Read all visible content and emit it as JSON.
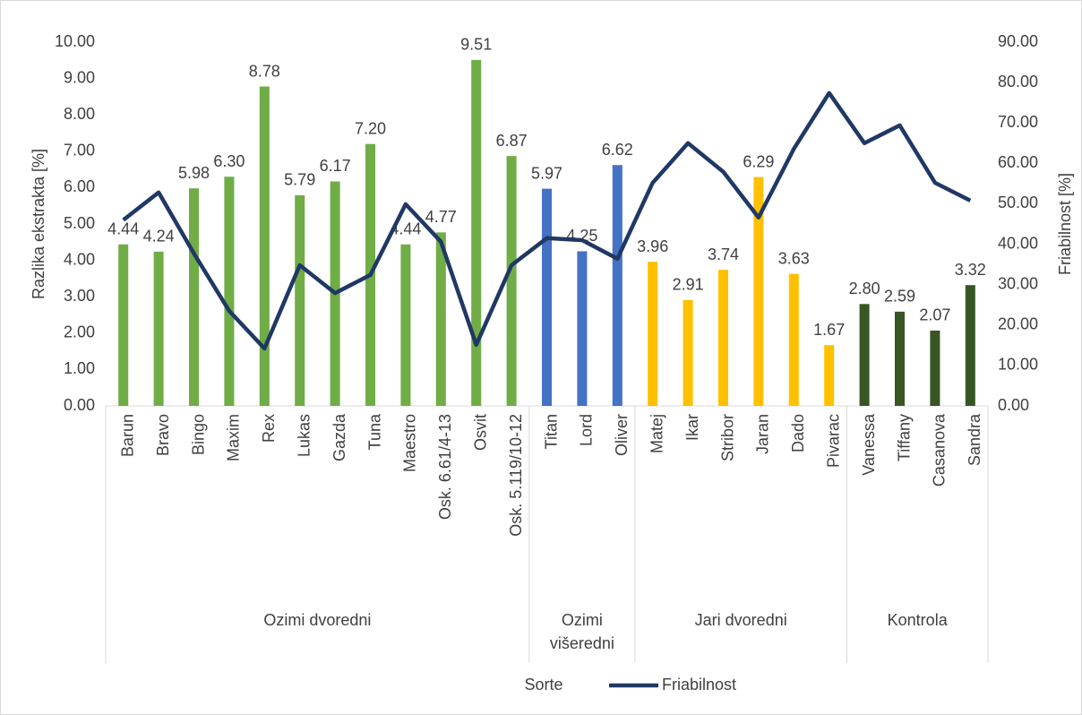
{
  "chart_data": {
    "type": "bar_line",
    "x_label": "Sorte",
    "y_label": "Razlika ekstrakta [%]",
    "y2_label": "Friabilnost [%]",
    "ylim": [
      0,
      10
    ],
    "yticks": [
      {
        "value": 0,
        "label": "0.00"
      },
      {
        "value": 1,
        "label": "1.00"
      },
      {
        "value": 2,
        "label": "2.00"
      },
      {
        "value": 3,
        "label": "3.00"
      },
      {
        "value": 4,
        "label": "4.00"
      },
      {
        "value": 5,
        "label": "5.00"
      },
      {
        "value": 6,
        "label": "6.00"
      },
      {
        "value": 7,
        "label": "7.00"
      },
      {
        "value": 8,
        "label": "8.00"
      },
      {
        "value": 9,
        "label": "9.00"
      },
      {
        "value": 10,
        "label": "10.00"
      }
    ],
    "y2lim": [
      0,
      90
    ],
    "y2ticks": [
      {
        "value": 0,
        "label": "0.00"
      },
      {
        "value": 10,
        "label": "10.00"
      },
      {
        "value": 20,
        "label": "20.00"
      },
      {
        "value": 30,
        "label": "30.00"
      },
      {
        "value": 40,
        "label": "40.00"
      },
      {
        "value": 50,
        "label": "50.00"
      },
      {
        "value": 60,
        "label": "60.00"
      },
      {
        "value": 70,
        "label": "70.00"
      },
      {
        "value": 80,
        "label": "80.00"
      },
      {
        "value": 90,
        "label": "90.00"
      }
    ],
    "groups": [
      {
        "name": "Ozimi dvoredni",
        "color": "#70ad47",
        "categories": [
          "Barun",
          "Bravo",
          "Bingo",
          "Maxim",
          "Rex",
          "Lukas",
          "Gazda",
          "Tuna",
          "Maestro",
          "Osk. 6.61/4-13",
          "Osvit",
          "Osk. 5.119/10-12"
        ],
        "values": [
          4.44,
          4.24,
          5.98,
          6.3,
          8.78,
          5.79,
          6.17,
          7.2,
          4.44,
          4.77,
          9.51,
          6.87
        ],
        "value_labels": [
          "4.44",
          "4.24",
          "5.98",
          "6.30",
          "8.78",
          "5.79",
          "6.17",
          "7.20",
          "4.44",
          "4.77",
          "9.51",
          "6.87"
        ]
      },
      {
        "name": "Ozimi višeredni",
        "color": "#4472c4",
        "categories": [
          "Titan",
          "Lord",
          "Oliver"
        ],
        "values": [
          5.97,
          4.25,
          6.62
        ],
        "value_labels": [
          "5.97",
          "4.25",
          "6.62"
        ]
      },
      {
        "name": "Jari dvoredni",
        "color": "#ffc000",
        "categories": [
          "Matej",
          "Ikar",
          "Stribor",
          "Jaran",
          "Dado",
          "Pivarac"
        ],
        "values": [
          3.96,
          2.91,
          3.74,
          6.29,
          3.63,
          1.67
        ],
        "value_labels": [
          "3.96",
          "2.91",
          "3.74",
          "6.29",
          "3.63",
          "1.67"
        ]
      },
      {
        "name": "Kontrola",
        "color": "#375623",
        "categories": [
          "Vanessa",
          "Tiffany",
          "Casanova",
          "Sandra"
        ],
        "values": [
          2.8,
          2.59,
          2.07,
          3.32
        ],
        "value_labels": [
          "2.80",
          "2.59",
          "2.07",
          "3.32"
        ]
      }
    ],
    "series": [
      {
        "name": "Friabilnost",
        "color": "#203864",
        "axis": "y2",
        "values": [
          46,
          52.8,
          37.7,
          23.5,
          14.2,
          34.8,
          27.9,
          32.4,
          49.9,
          40.6,
          15.1,
          34.8,
          41.5,
          41.0,
          36.4,
          55.2,
          65.0,
          57.9,
          46.6,
          63.6,
          77.4,
          65.0,
          69.4,
          55.2,
          50.8
        ]
      }
    ]
  }
}
